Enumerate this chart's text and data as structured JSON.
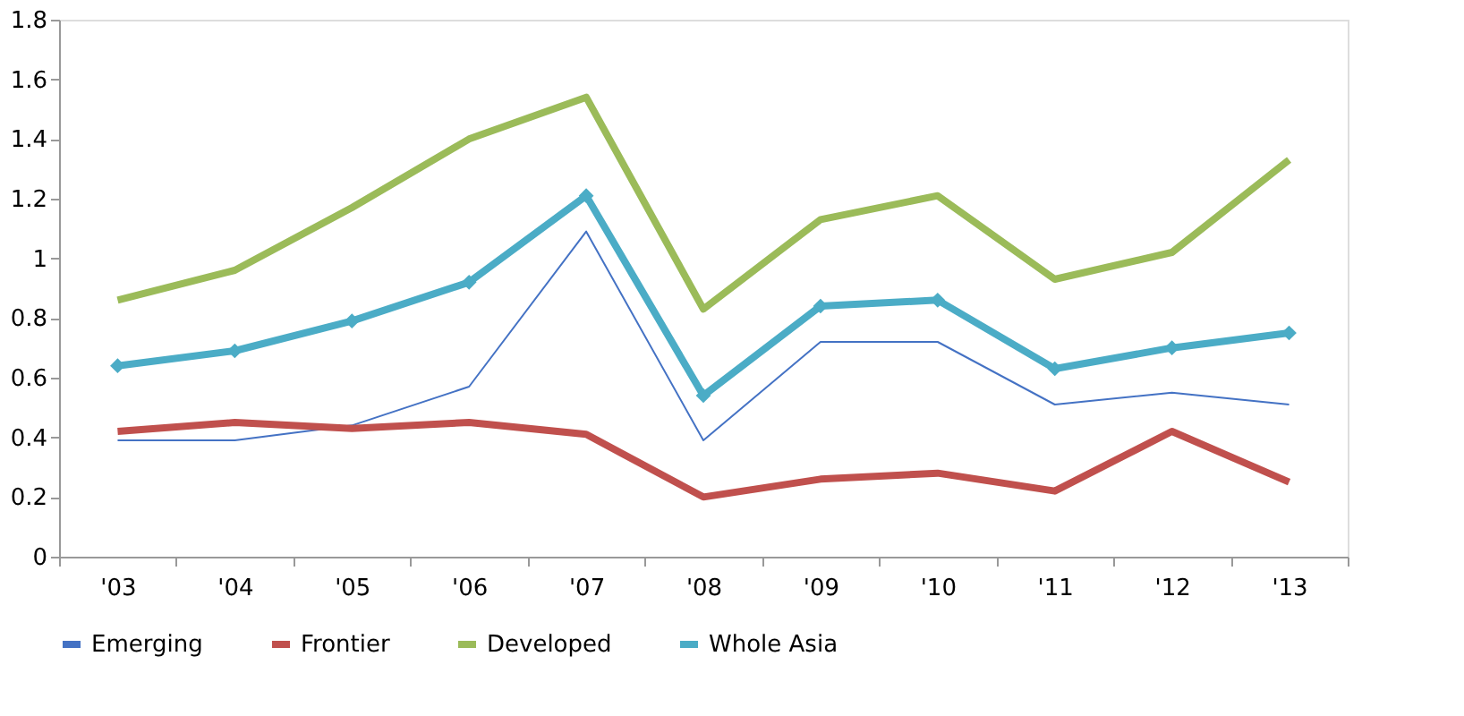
{
  "chart_data": {
    "type": "line",
    "categories": [
      "'03",
      "'04",
      "'05",
      "'06",
      "'07",
      "'08",
      "'09",
      "'10",
      "'11",
      "'12",
      "'13"
    ],
    "series": [
      {
        "name": "Emerging",
        "color": "#4472c4",
        "values": [
          0.39,
          0.39,
          0.44,
          0.57,
          1.09,
          0.39,
          0.72,
          0.72,
          0.51,
          0.55,
          0.51
        ]
      },
      {
        "name": "Frontier",
        "color": "#c0504d",
        "values": [
          0.42,
          0.45,
          0.43,
          0.45,
          0.41,
          0.2,
          0.26,
          0.28,
          0.22,
          0.42,
          0.25
        ]
      },
      {
        "name": "Developed",
        "color": "#9bbb59",
        "values": [
          0.86,
          0.96,
          1.17,
          1.4,
          1.54,
          0.83,
          1.13,
          1.21,
          0.93,
          1.02,
          1.33
        ]
      },
      {
        "name": "Whole Asia",
        "color": "#4bacc6",
        "marker": "diamond",
        "values": [
          0.64,
          0.69,
          0.79,
          0.92,
          1.21,
          0.54,
          0.84,
          0.86,
          0.63,
          0.7,
          0.75
        ]
      }
    ],
    "ylim": [
      0,
      1.8
    ],
    "yticks": [
      0,
      0.2,
      0.4,
      0.6,
      0.8,
      1,
      1.2,
      1.4,
      1.6,
      1.8
    ],
    "grid": false,
    "legend": "bottom"
  }
}
